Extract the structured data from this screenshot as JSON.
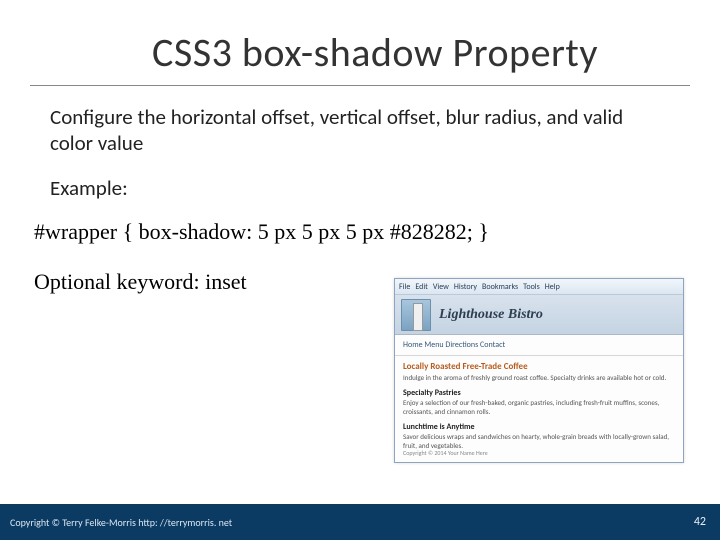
{
  "title": "CSS3  box-shadow Property",
  "description": "Configure the horizontal offset, vertical offset, blur radius, and valid color value",
  "exampleLabel": "Example:",
  "codeLine": "#wrapper { box-shadow: 5 px 5 px 5 px #828282; }",
  "optionalLine": "Optional keyword: inset",
  "screenshot": {
    "menu": [
      "File",
      "Edit",
      "View",
      "History",
      "Bookmarks",
      "Tools",
      "Help"
    ],
    "siteName": "Lighthouse Bistro",
    "nav": "Home Menu Directions Contact",
    "headline1": "Locally Roasted Free-Trade Coffee",
    "para1": "Indulge in the aroma of freshly ground roast coffee. Specialty drinks are available hot or cold.",
    "sub1": "Specialty Pastries",
    "para2": "Enjoy a selection of our fresh-baked, organic pastries, including fresh-fruit muffins, scones, croissants, and cinnamon rolls.",
    "sub2": "Lunchtime is Anytime",
    "para3": "Savor delicious wraps and sandwiches on hearty, whole-grain breads with locally-grown salad, fruit, and vegetables.",
    "ssFooter": "Copyright © 2014 Your Name Here"
  },
  "copyright": "Copyright © Terry Felke-Morris http: //terrymorris. net",
  "pageNumber": "42",
  "colors": {
    "footerBg": "#0b3a63",
    "titleColor": "#333333",
    "accentOrange": "#b85c1e"
  }
}
